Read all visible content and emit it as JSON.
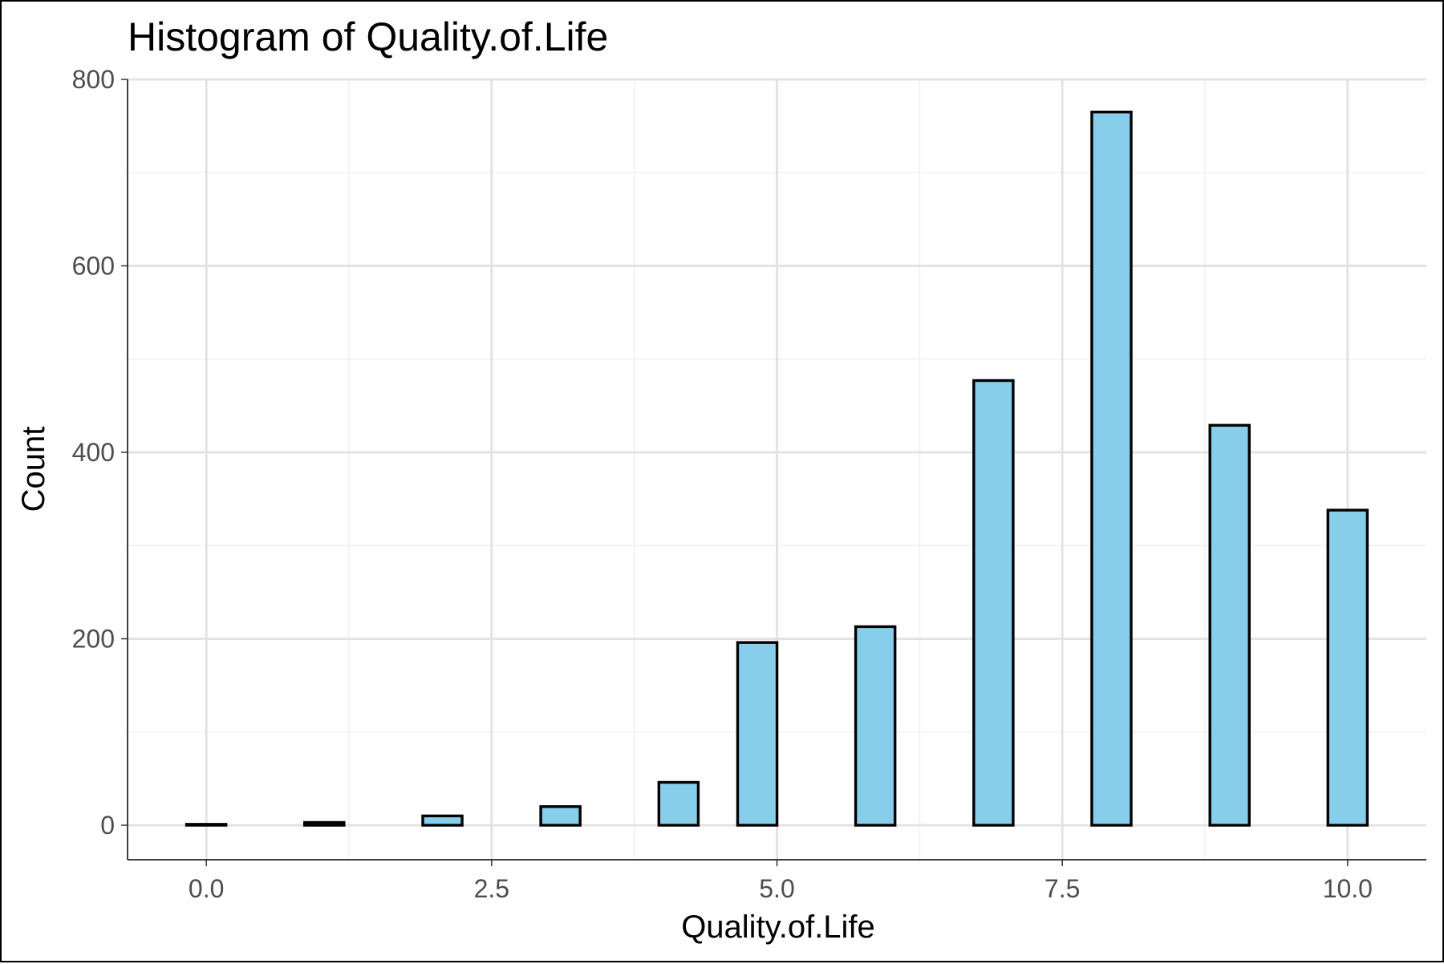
{
  "chart_data": {
    "type": "bar",
    "title": "Histogram of Quality.of.Life",
    "xlabel": "Quality.of.Life",
    "ylabel": "Count",
    "xlim": [
      -0.69,
      10.69
    ],
    "ylim": [
      -37,
      800
    ],
    "x_ticks": [
      0,
      2.5,
      5,
      7.5,
      10
    ],
    "x_tick_labels": [
      "0.0",
      "2.5",
      "5.0",
      "7.5",
      "10.0"
    ],
    "y_ticks": [
      0,
      200,
      400,
      600,
      800
    ],
    "y_tick_labels": [
      "0",
      "200",
      "400",
      "600",
      "800"
    ],
    "bin_width": 0.345,
    "bins": [
      {
        "x": 0.0,
        "count": 1
      },
      {
        "x": 0.345,
        "count": 0
      },
      {
        "x": 0.69,
        "count": 0
      },
      {
        "x": 1.034,
        "count": 3
      },
      {
        "x": 1.379,
        "count": 0
      },
      {
        "x": 1.724,
        "count": 0
      },
      {
        "x": 2.069,
        "count": 10
      },
      {
        "x": 2.414,
        "count": 0
      },
      {
        "x": 2.759,
        "count": 0
      },
      {
        "x": 3.103,
        "count": 20
      },
      {
        "x": 3.448,
        "count": 0
      },
      {
        "x": 3.793,
        "count": 0
      },
      {
        "x": 4.138,
        "count": 46
      },
      {
        "x": 4.828,
        "count": 196
      },
      {
        "x": 5.172,
        "count": 0
      },
      {
        "x": 5.517,
        "count": 0
      },
      {
        "x": 5.862,
        "count": 213
      },
      {
        "x": 6.207,
        "count": 0
      },
      {
        "x": 6.552,
        "count": 0
      },
      {
        "x": 6.897,
        "count": 477
      },
      {
        "x": 7.241,
        "count": 0
      },
      {
        "x": 7.586,
        "count": 0
      },
      {
        "x": 7.931,
        "count": 765
      },
      {
        "x": 8.276,
        "count": 0
      },
      {
        "x": 8.621,
        "count": 0
      },
      {
        "x": 8.966,
        "count": 429
      },
      {
        "x": 9.31,
        "count": 0
      },
      {
        "x": 9.655,
        "count": 0
      },
      {
        "x": 10.0,
        "count": 338
      }
    ],
    "grid": true,
    "colors": {
      "bar_fill": "#87ceeb",
      "bar_stroke": "#000000"
    }
  }
}
